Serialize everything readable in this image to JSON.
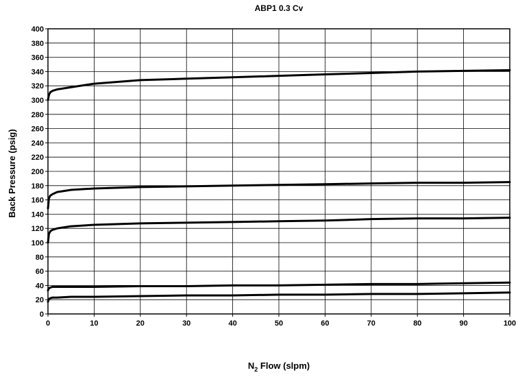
{
  "chart_data": {
    "type": "line",
    "title": "ABP1 0.3 Cv",
    "xlabel": {
      "main": "N",
      "sub": "2",
      "rest": " Flow (slpm)"
    },
    "ylabel": "Back Pressure (psig)",
    "xlim": [
      0,
      100
    ],
    "ylim": [
      0,
      400
    ],
    "x_ticks": [
      0,
      10,
      20,
      30,
      40,
      50,
      60,
      70,
      80,
      90,
      100
    ],
    "y_ticks": [
      0,
      20,
      40,
      60,
      80,
      100,
      120,
      140,
      160,
      180,
      200,
      220,
      240,
      260,
      280,
      300,
      320,
      340,
      360,
      380,
      400
    ],
    "grid": true,
    "line_color": "#000000",
    "grid_color": "#000000",
    "series": [
      {
        "x": [
          0,
          0.2,
          0.5,
          1,
          2,
          3,
          5,
          10,
          20,
          30,
          40,
          50,
          60,
          70,
          80,
          90,
          100
        ],
        "values": [
          300,
          307,
          311,
          313,
          315,
          316,
          318,
          323,
          328,
          330,
          332,
          334,
          336,
          338,
          340,
          341,
          342
        ]
      },
      {
        "x": [
          0,
          0.2,
          0.5,
          1,
          2,
          3,
          5,
          10,
          20,
          30,
          40,
          50,
          60,
          70,
          80,
          90,
          100
        ],
        "values": [
          148,
          162,
          166,
          168,
          171,
          172,
          174,
          176,
          178,
          179,
          180,
          181,
          182,
          183,
          184,
          184,
          185
        ]
      },
      {
        "x": [
          0,
          0.2,
          0.5,
          1,
          2,
          3,
          5,
          10,
          20,
          30,
          40,
          50,
          60,
          70,
          80,
          90,
          100
        ],
        "values": [
          100,
          112,
          116,
          118,
          120,
          121,
          123,
          125,
          127,
          128,
          129,
          130,
          131,
          133,
          134,
          134,
          135
        ]
      },
      {
        "x": [
          0,
          0.2,
          0.5,
          1,
          2,
          5,
          10,
          20,
          30,
          40,
          50,
          60,
          70,
          80,
          90,
          100
        ],
        "values": [
          33,
          36,
          37,
          38,
          38,
          38,
          38,
          39,
          39,
          40,
          40,
          41,
          42,
          42,
          43,
          44
        ]
      },
      {
        "x": [
          0,
          0.2,
          0.5,
          1,
          2,
          5,
          10,
          20,
          30,
          40,
          50,
          60,
          70,
          80,
          90,
          100
        ],
        "values": [
          17,
          21,
          22,
          23,
          23,
          24,
          24,
          25,
          26,
          26,
          27,
          27,
          28,
          28,
          29,
          30
        ]
      }
    ]
  }
}
